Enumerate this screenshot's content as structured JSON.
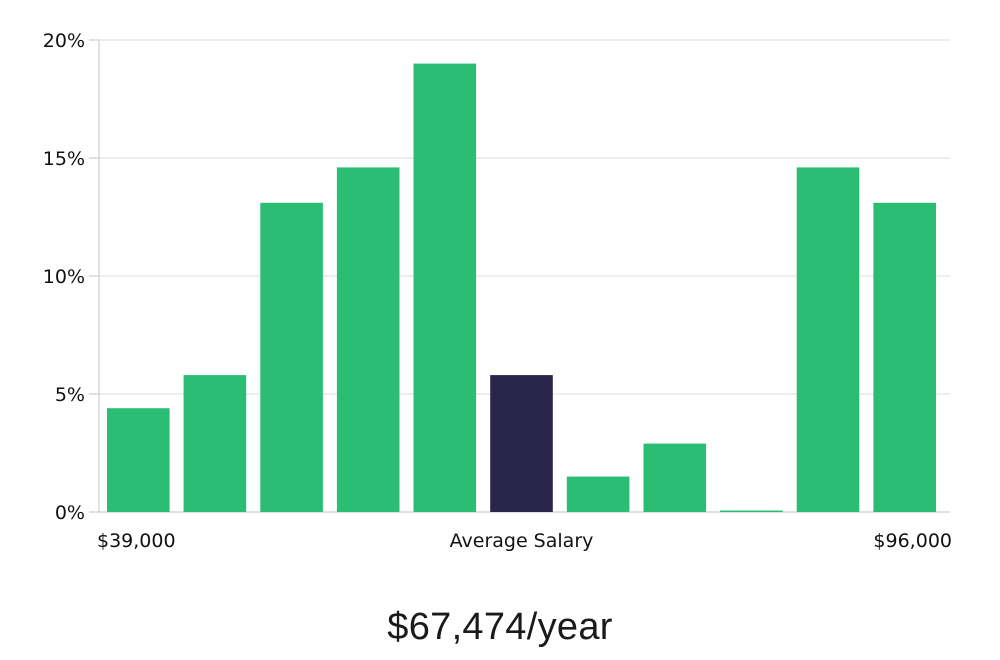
{
  "colors": {
    "bar": "#2bbd74",
    "highlight": "#28244a",
    "grid": "#e3e3e3",
    "axis": "#cfcfcf"
  },
  "chart_data": {
    "type": "bar",
    "y_ticks": [
      "0%",
      "5%",
      "10%",
      "15%",
      "20%"
    ],
    "ylim": [
      0,
      20
    ],
    "grid": true,
    "x_labels": {
      "left": "$39,000",
      "center": "Average Salary",
      "right": "$96,000"
    },
    "values": [
      4.4,
      5.8,
      13.1,
      14.6,
      19.0,
      5.8,
      1.5,
      2.9,
      0.05,
      14.6,
      13.1
    ],
    "highlight_index": 5
  },
  "summary": {
    "salary": "$67,474/year"
  }
}
